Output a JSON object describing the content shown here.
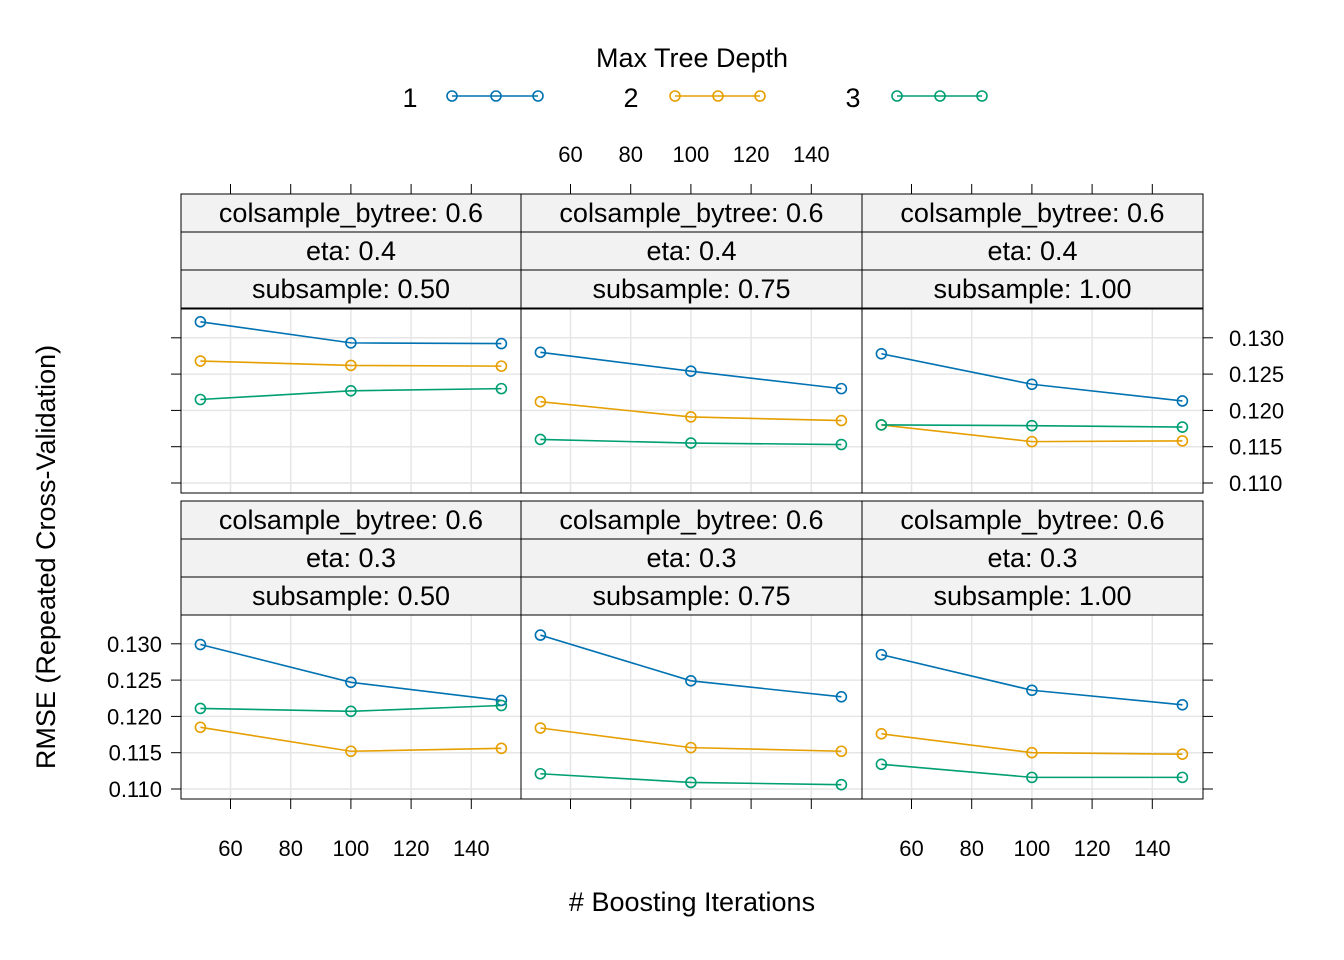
{
  "legend": {
    "title": "Max Tree Depth",
    "items": [
      {
        "label": "1",
        "color": "#0072B2"
      },
      {
        "label": "2",
        "color": "#E69F00"
      },
      {
        "label": "3",
        "color": "#009E73"
      }
    ]
  },
  "chart_data": {
    "type": "line",
    "xlabel": "# Boosting Iterations",
    "ylabel": "RMSE (Repeated Cross-Validation)",
    "x_ticks": [
      60,
      80,
      100,
      120,
      140
    ],
    "y_ticks": [
      "0.110",
      "0.115",
      "0.120",
      "0.125",
      "0.130"
    ],
    "x": [
      50,
      100,
      150
    ],
    "grid": true,
    "legend_position": "top",
    "panels": [
      {
        "strips": [
          "colsample_bytree: 0.6",
          "eta: 0.4",
          "subsample: 0.50"
        ],
        "series": [
          {
            "name": "1",
            "values": [
              0.1322,
              0.1293,
              0.1292
            ]
          },
          {
            "name": "2",
            "values": [
              0.1268,
              0.1262,
              0.1261
            ]
          },
          {
            "name": "3",
            "values": [
              0.1215,
              0.1227,
              0.123
            ]
          }
        ]
      },
      {
        "strips": [
          "colsample_bytree: 0.6",
          "eta: 0.4",
          "subsample: 0.75"
        ],
        "series": [
          {
            "name": "1",
            "values": [
              0.128,
              0.1254,
              0.123
            ]
          },
          {
            "name": "2",
            "values": [
              0.1212,
              0.1191,
              0.1186
            ]
          },
          {
            "name": "3",
            "values": [
              0.116,
              0.1155,
              0.1153
            ]
          }
        ]
      },
      {
        "strips": [
          "colsample_bytree: 0.6",
          "eta: 0.4",
          "subsample: 1.00"
        ],
        "series": [
          {
            "name": "1",
            "values": [
              0.1278,
              0.1236,
              0.1213
            ]
          },
          {
            "name": "2",
            "values": [
              0.118,
              0.1157,
              0.1158
            ]
          },
          {
            "name": "3",
            "values": [
              0.118,
              0.1179,
              0.1177
            ]
          }
        ]
      },
      {
        "strips": [
          "colsample_bytree: 0.6",
          "eta: 0.3",
          "subsample: 0.50"
        ],
        "series": [
          {
            "name": "1",
            "values": [
              0.1299,
              0.1247,
              0.1222
            ]
          },
          {
            "name": "2",
            "values": [
              0.1185,
              0.1152,
              0.1156
            ]
          },
          {
            "name": "3",
            "values": [
              0.1211,
              0.1207,
              0.1215
            ]
          }
        ]
      },
      {
        "strips": [
          "colsample_bytree: 0.6",
          "eta: 0.3",
          "subsample: 0.75"
        ],
        "series": [
          {
            "name": "1",
            "values": [
              0.1312,
              0.1249,
              0.1227
            ]
          },
          {
            "name": "2",
            "values": [
              0.1184,
              0.1157,
              0.1152
            ]
          },
          {
            "name": "3",
            "values": [
              0.1121,
              0.1109,
              0.1106
            ]
          }
        ]
      },
      {
        "strips": [
          "colsample_bytree: 0.6",
          "eta: 0.3",
          "subsample: 1.00"
        ],
        "series": [
          {
            "name": "1",
            "values": [
              0.1285,
              0.1236,
              0.1216
            ]
          },
          {
            "name": "2",
            "values": [
              0.1176,
              0.115,
              0.1148
            ]
          },
          {
            "name": "3",
            "values": [
              0.1134,
              0.1116,
              0.1116
            ]
          }
        ]
      }
    ]
  }
}
